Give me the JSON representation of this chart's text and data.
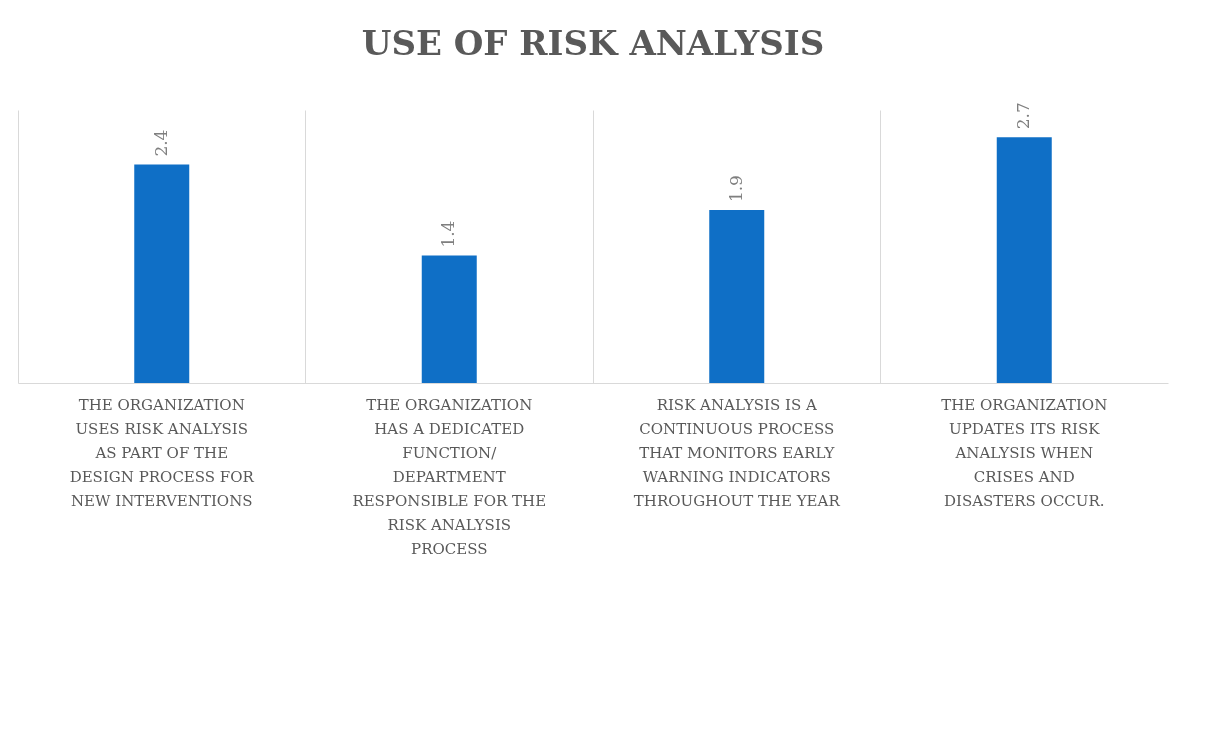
{
  "chart_data": {
    "type": "bar",
    "title": "USE OF RISK ANALYSIS",
    "categories": [
      "THE ORGANIZATION USES RISK ANALYSIS AS PART OF THE DESIGN PROCESS FOR NEW INTERVENTIONS",
      "THE ORGANIZATION HAS A DEDICATED FUNCTION/ DEPARTMENT RESPONSIBLE FOR THE RISK ANALYSIS PROCESS",
      "RISK ANALYSIS IS A CONTINUOUS PROCESS THAT MONITORS EARLY WARNING INDICATORS THROUGHOUT THE YEAR",
      "THE ORGANIZATION UPDATES ITS RISK ANALYSIS WHEN CRISES AND DISASTERS OCCUR."
    ],
    "values": [
      2.4,
      1.4,
      1.9,
      2.7
    ],
    "color": "#0f6fc6",
    "ylim": [
      0,
      3
    ],
    "data_labels": true,
    "grid": "x",
    "tick_labels": "x"
  }
}
